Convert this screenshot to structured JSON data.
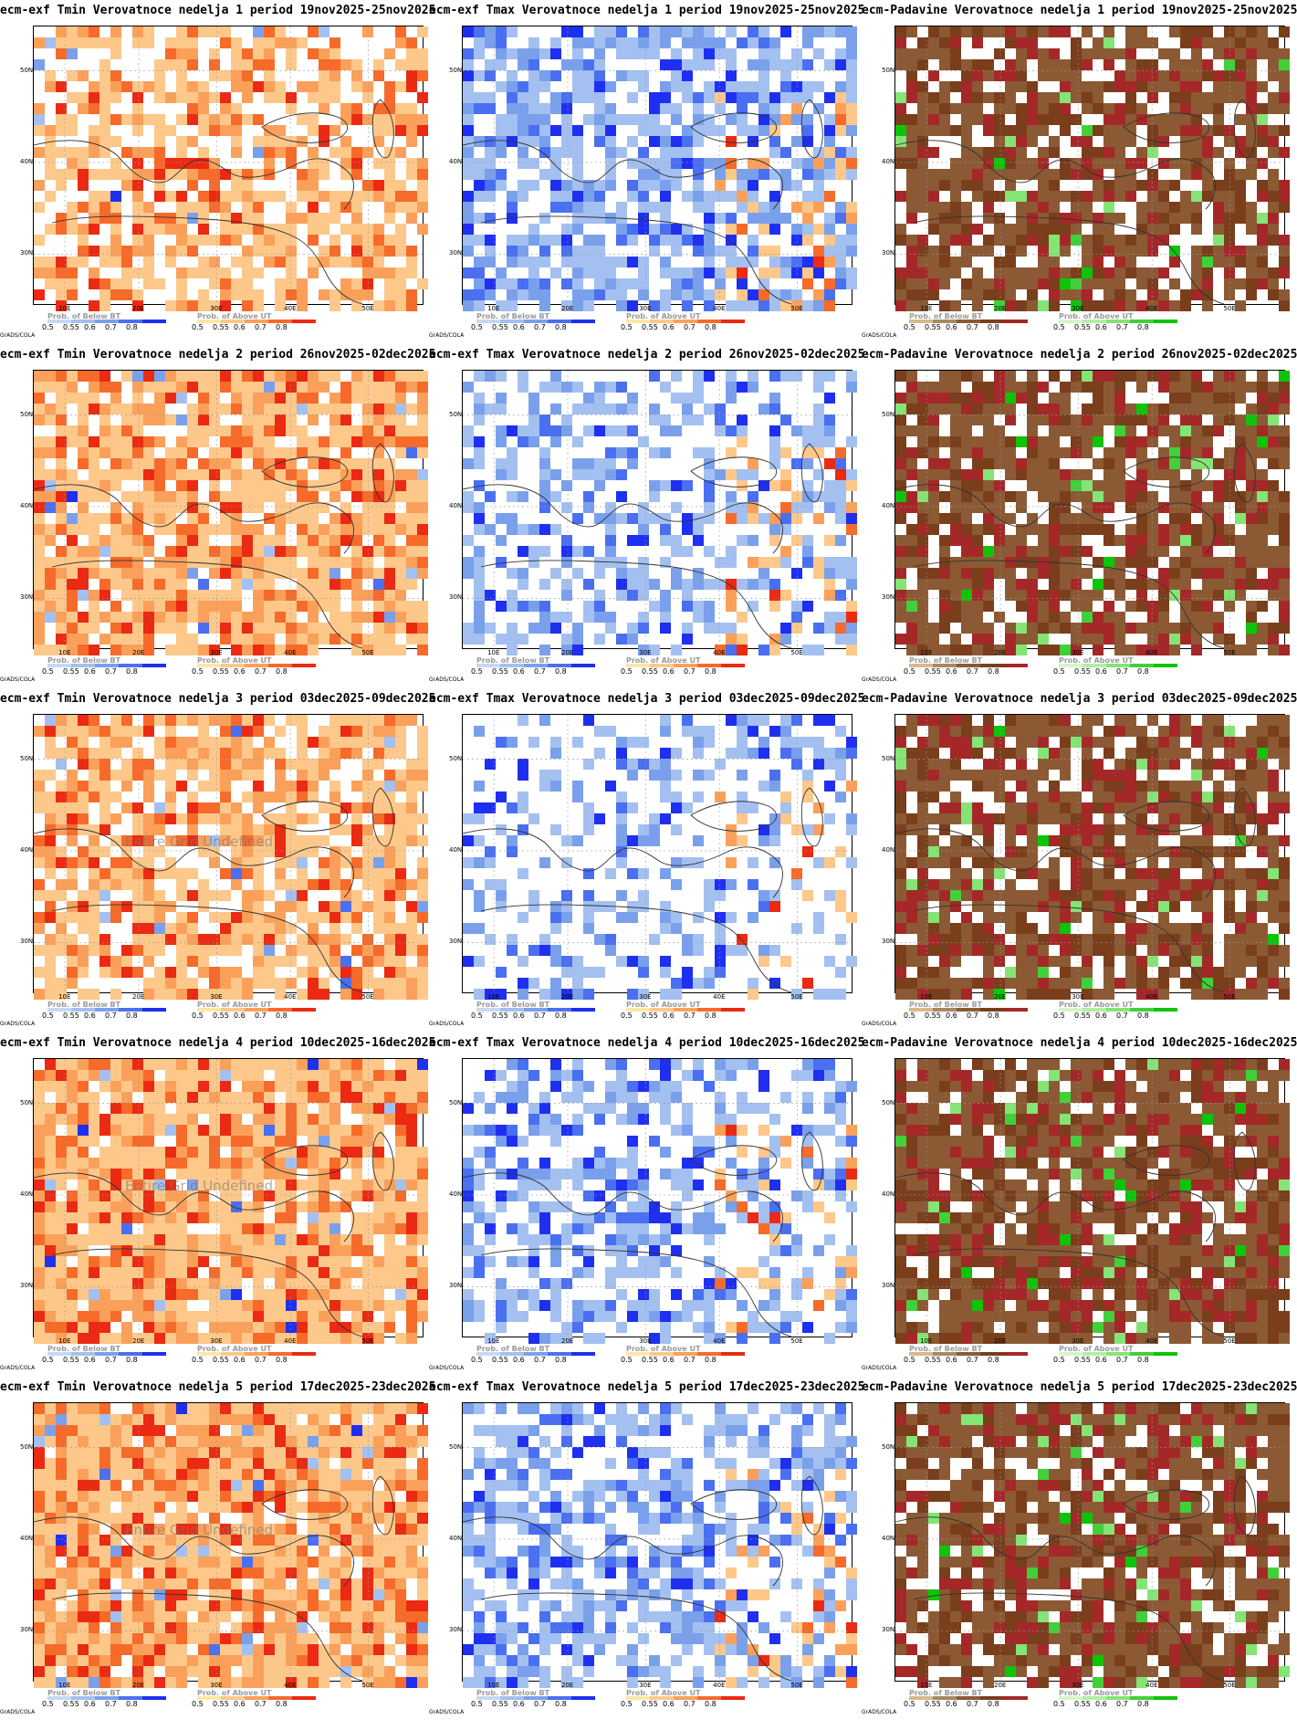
{
  "footer": {
    "grads": "GrADS/COLA"
  },
  "axes": {
    "lat_labels": [
      "50N",
      "40N",
      "30N"
    ],
    "lon_labels": [
      "10E",
      "20E",
      "30E",
      "40E",
      "50E"
    ]
  },
  "legend_ticks_left": [
    "0.5",
    "0.55",
    "0.6",
    "0.7",
    "0.8"
  ],
  "legend_ticks_right": [
    "0.5",
    "0.55",
    "0.6",
    "0.7",
    "0.8"
  ],
  "legend_names": {
    "below": "Prob. of Below BT",
    "above": "Prob. of Above UT"
  },
  "colors": {
    "cold": [
      "#c6d8f5",
      "#a3c0f0",
      "#7aa0ec",
      "#4a6ff0",
      "#1f2ff0"
    ],
    "warm": [
      "#fde6a8",
      "#fdc88a",
      "#fba05a",
      "#f66a2a",
      "#ea2a12"
    ],
    "dry": [
      "#d9b88a",
      "#a78865",
      "#8b5a34",
      "#7a3e1c",
      "#a52828"
    ],
    "wet": [
      "#d6f5c8",
      "#b2efa2",
      "#84e476",
      "#42d03a",
      "#0ec40a"
    ]
  },
  "undefined_text": "Entire Grid Undefined",
  "panels": [
    {
      "title": "ecm-exf Tmin Verovatnoce nedelja 1 period 19nov2025-25nov2025",
      "var": "tmin",
      "cover": 0.62
    },
    {
      "title": "ecm-exf Tmax Verovatnoce nedelja 1 period 19nov2025-25nov2025",
      "var": "tmax",
      "cover": 0.7
    },
    {
      "title": "ecm-Padavine Verovatnoce nedelja 1 period 19nov2025-25nov2025",
      "var": "prec",
      "cover": 0.8
    },
    {
      "title": "ecm-exf Tmin Verovatnoce nedelja 2 period 26nov2025-02dec2025",
      "var": "tmin",
      "cover": 0.82
    },
    {
      "title": "ecm-exf Tmax Verovatnoce nedelja 2 period 26nov2025-02dec2025",
      "var": "tmax",
      "cover": 0.45
    },
    {
      "title": "ecm-Padavine Verovatnoce nedelja 2 period 26nov2025-02dec2025",
      "var": "prec",
      "cover": 0.82
    },
    {
      "title": "ecm-exf Tmin Verovatnoce nedelja 3 period 03dec2025-09dec2025",
      "var": "tmin",
      "cover": 0.78,
      "undef": true
    },
    {
      "title": "ecm-exf Tmax Verovatnoce nedelja 3 period 03dec2025-09dec2025",
      "var": "tmax",
      "cover": 0.35
    },
    {
      "title": "ecm-Padavine Verovatnoce nedelja 3 period 03dec2025-09dec2025",
      "var": "prec",
      "cover": 0.8
    },
    {
      "title": "ecm-exf Tmin Verovatnoce nedelja 4 period 10dec2025-16dec2025",
      "var": "tmin",
      "cover": 0.9,
      "undef": true
    },
    {
      "title": "ecm-exf Tmax Verovatnoce nedelja 4 period 10dec2025-16dec2025",
      "var": "tmax",
      "cover": 0.5
    },
    {
      "title": "ecm-Padavine Verovatnoce nedelja 4 period 10dec2025-16dec2025",
      "var": "prec",
      "cover": 0.85
    },
    {
      "title": "ecm-exf Tmin Verovatnoce nedelja 5 period 17dec2025-23dec2025",
      "var": "tmin",
      "cover": 0.92,
      "undef": true
    },
    {
      "title": "ecm-exf Tmax Verovatnoce nedelja 5 period 17dec2025-23dec2025",
      "var": "tmax",
      "cover": 0.55
    },
    {
      "title": "ecm-Padavine Verovatnoce nedelja 5 period 17dec2025-23dec2025",
      "var": "prec",
      "cover": 0.82
    }
  ]
}
